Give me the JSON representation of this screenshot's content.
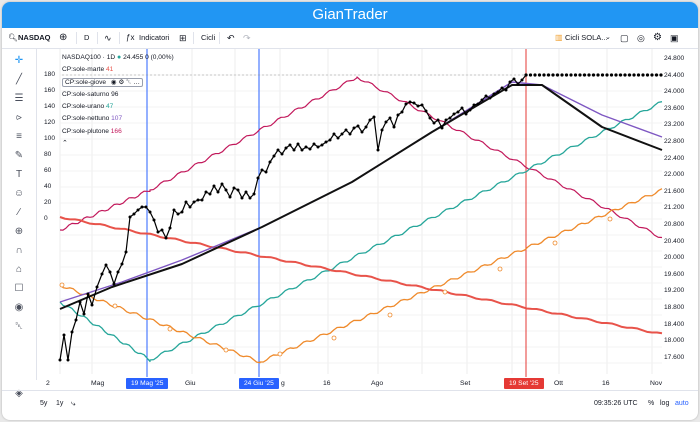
{
  "app": {
    "title": "GianTrader"
  },
  "toolbar": {
    "symbol": "NASDAQ",
    "interval": "D",
    "indicators_label": "Indicatori",
    "cycles_label": "Cicli",
    "template_label": "Cicli SOLA..."
  },
  "legend": {
    "symbol_line": "NASDAQ100 · 1D",
    "price": "24.455",
    "change": "0 (0,00%)",
    "rows": [
      {
        "label": "CP:sole-marte",
        "value": "41",
        "color": "#e8534a"
      },
      {
        "label": "CP:sole-giove",
        "value": "",
        "color": "#1a1a2e"
      },
      {
        "label": "CP:sole-saturno",
        "value": "96",
        "color": "#131722"
      },
      {
        "label": "CP:sole-urano",
        "value": "47",
        "color": "#26a69a"
      },
      {
        "label": "CP:sole-nettuno",
        "value": "107",
        "color": "#7e57c2"
      },
      {
        "label": "CP:sole-plutone",
        "value": "166",
        "color": "#c2185b"
      }
    ]
  },
  "left_axis": {
    "ticks": [
      "180",
      "160",
      "140",
      "120",
      "100",
      "80",
      "60",
      "40",
      "20",
      "0"
    ]
  },
  "right_axis": {
    "ticks": [
      "24.800",
      "24.400",
      "24.000",
      "23.600",
      "23.200",
      "22.800",
      "22.400",
      "22.000",
      "21.600",
      "21.200",
      "20.800",
      "20.400",
      "20.000",
      "19.600",
      "19.200",
      "18.800",
      "18.400",
      "18.000",
      "17.600"
    ]
  },
  "x_axis": {
    "labels": [
      "2",
      "Mag",
      "19 Mag '25",
      "Giu",
      "24 Giu '25",
      "g",
      "16",
      "Ago",
      "Set",
      "19 Set '25",
      "Ott",
      "16",
      "Nov"
    ]
  },
  "markers": {
    "blue1": "19 Mag '25",
    "blue2": "24 Giu '25",
    "red": "19 Set '25"
  },
  "bottom": {
    "range_5y": "5y",
    "range_1y": "1y",
    "time": "09:35:26 UTC",
    "percent": "%",
    "log": "log",
    "auto": "auto"
  },
  "colors": {
    "accent": "#2196f3",
    "marte": "#e8534a",
    "giove": "#1a1a2e",
    "urano": "#26a69a",
    "nettuno": "#7e57c2",
    "plutone": "#c2185b",
    "orange": "#ef8a2b",
    "redline": "#e53935"
  }
}
